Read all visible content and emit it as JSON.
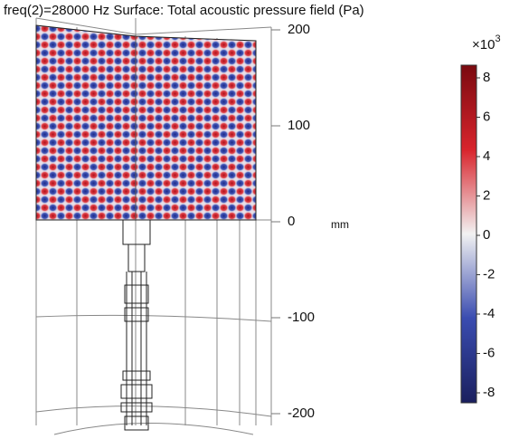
{
  "title": "freq(2)=28000 Hz  Surface: Total acoustic pressure field (Pa)",
  "axis": {
    "unit": "mm",
    "ticks": [
      "200",
      "100",
      "0",
      "-100",
      "-200"
    ]
  },
  "colorbar": {
    "multiplier_base": "×10",
    "multiplier_exponent": "3",
    "ticks": [
      "8",
      "6",
      "4",
      "2",
      "0",
      "-2",
      "-4",
      "-6",
      "-8"
    ]
  }
}
